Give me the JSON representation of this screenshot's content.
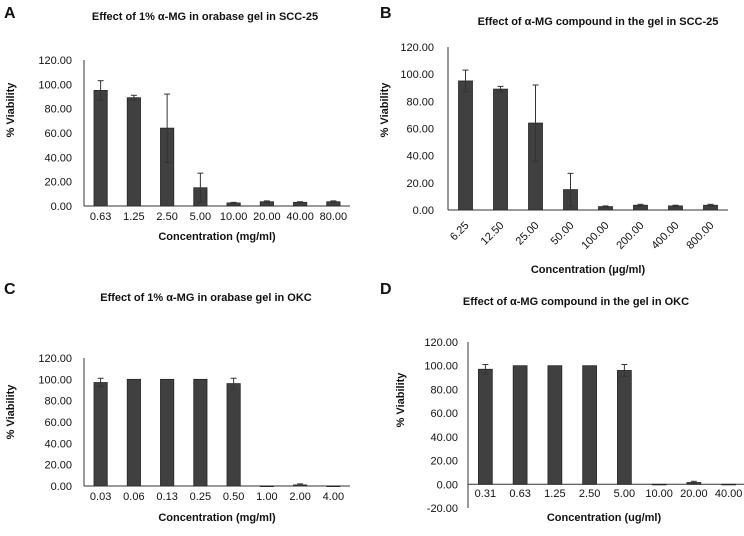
{
  "chart_data": [
    {
      "panel": "A",
      "type": "bar",
      "title": "Effect of 1% α-MG in orabase gel in SCC-25",
      "xlabel": "Concentration (mg/ml)",
      "ylabel": "% Viability",
      "ylim": [
        0,
        120
      ],
      "yticks": [
        "0.00",
        "20.00",
        "40.00",
        "60.00",
        "80.00",
        "100.00",
        "120.00"
      ],
      "categories": [
        "0.63",
        "1.25",
        "2.50",
        "5.00",
        "10.00",
        "20.00",
        "40.00",
        "80.00"
      ],
      "values": [
        95,
        89,
        64,
        15,
        2.5,
        3.5,
        3,
        3.5
      ],
      "errors": [
        8,
        2,
        28,
        12,
        0.5,
        0.7,
        0.5,
        0.7
      ],
      "rotate_labels": false
    },
    {
      "panel": "B",
      "type": "bar",
      "title": "Effect of α-MG compound in the gel in SCC-25",
      "xlabel": "Concentration (μg/ml)",
      "ylabel": "% Viability",
      "ylim": [
        0,
        120
      ],
      "yticks": [
        "0.00",
        "20.00",
        "40.00",
        "60.00",
        "80.00",
        "100.00",
        "120.00"
      ],
      "categories": [
        "6.25",
        "12.50",
        "25.00",
        "50.00",
        "100.00",
        "200.00",
        "400.00",
        "800.00"
      ],
      "values": [
        95,
        89,
        64,
        15,
        2.5,
        3.5,
        3,
        3.5
      ],
      "errors": [
        8,
        2,
        28,
        12,
        0.5,
        0.7,
        0.5,
        0.7
      ],
      "rotate_labels": true
    },
    {
      "panel": "C",
      "type": "bar",
      "title": "Effect of 1% α-MG in orabase gel in OKC",
      "xlabel": "Concentration (mg/ml)",
      "ylabel": "% Viability",
      "ylim": [
        0,
        120
      ],
      "yticks": [
        "0.00",
        "20.00",
        "40.00",
        "60.00",
        "80.00",
        "100.00",
        "120.00"
      ],
      "categories": [
        "0.03",
        "0.06",
        "0.13",
        "0.25",
        "0.50",
        "1.00",
        "2.00",
        "4.00"
      ],
      "values": [
        97,
        100,
        100,
        100,
        96,
        0,
        1,
        0
      ],
      "errors": [
        4,
        0,
        0,
        0,
        5,
        0,
        1,
        0
      ],
      "rotate_labels": false
    },
    {
      "panel": "D",
      "type": "bar",
      "title": "Effect of α-MG compound in the gel in OKC",
      "xlabel": "Concentration (ug/ml)",
      "ylabel": "% Viability",
      "ylim": [
        -20,
        120
      ],
      "yticks": [
        "-20.00",
        "0.00",
        "20.00",
        "40.00",
        "60.00",
        "80.00",
        "100.00",
        "120.00"
      ],
      "categories": [
        "0.31",
        "0.63",
        "1.25",
        "2.50",
        "5.00",
        "10.00",
        "20.00",
        "40.00"
      ],
      "values": [
        97,
        100,
        100,
        100,
        96,
        0,
        1.5,
        0
      ],
      "errors": [
        4,
        0,
        0,
        0,
        5,
        0,
        1,
        0
      ],
      "rotate_labels": false
    }
  ]
}
